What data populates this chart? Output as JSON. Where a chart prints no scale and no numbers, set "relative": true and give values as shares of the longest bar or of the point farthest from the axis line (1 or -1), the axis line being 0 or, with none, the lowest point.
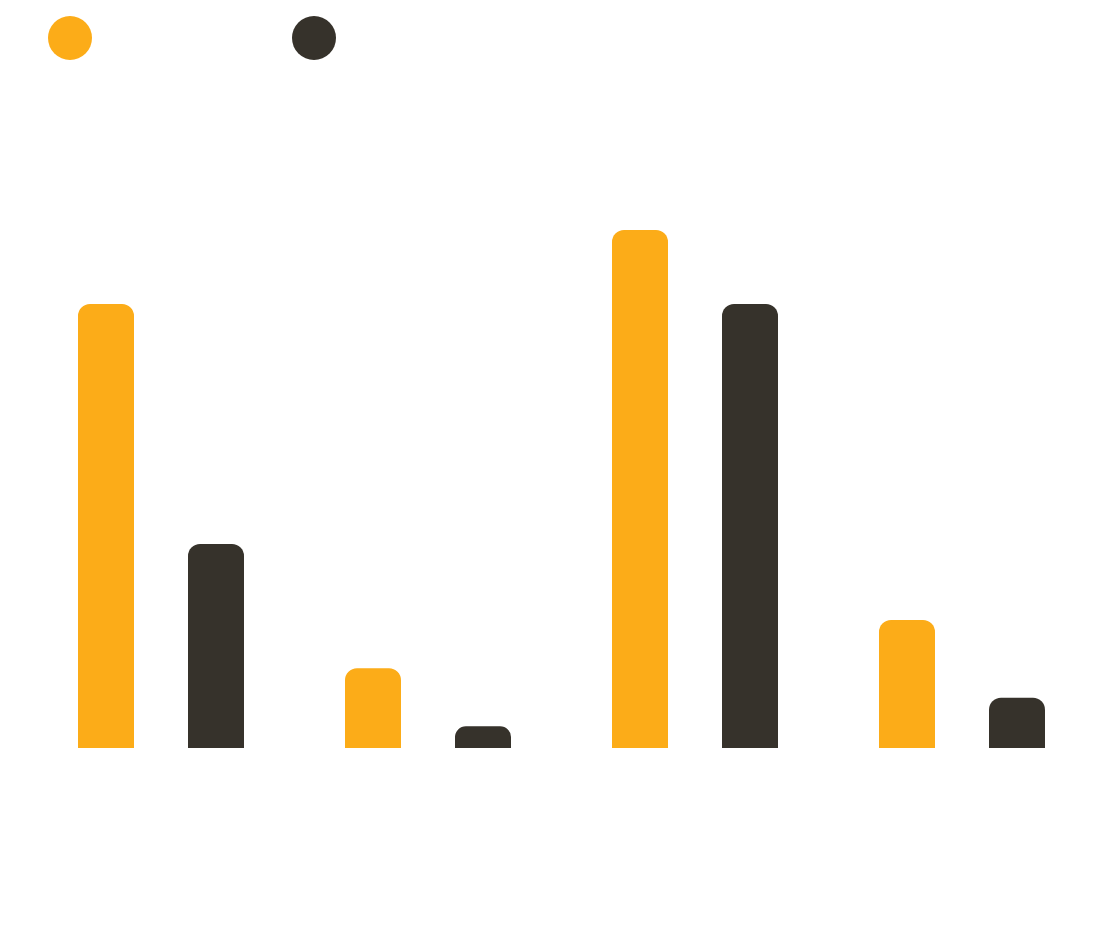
{
  "chart_data": {
    "type": "bar",
    "relative": true,
    "categories": [
      null,
      null,
      null,
      null
    ],
    "series": [
      {
        "color": "#fcac18",
        "values": [
          0.857,
          0.154,
          1,
          0.247
        ]
      },
      {
        "color": "#36322b",
        "values": [
          0.394,
          0.042,
          0.857,
          0.097
        ]
      }
    ]
  }
}
